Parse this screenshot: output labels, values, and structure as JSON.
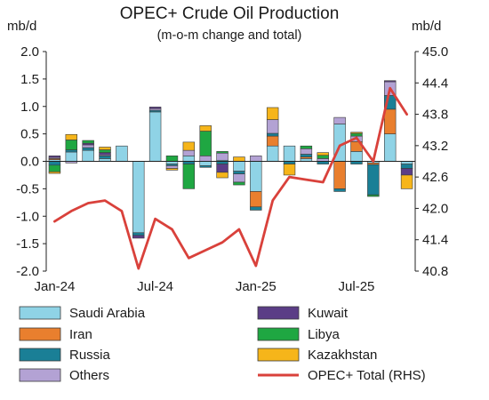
{
  "chart_data": {
    "type": "bar",
    "subtype": "stacked-bar with line on secondary axis",
    "title": "OPEC+ Crude Oil Production",
    "subtitle": "(m-o-m change and total)",
    "left_unit": "mb/d",
    "right_unit": "mb/d",
    "ylim": [
      -2.0,
      2.0
    ],
    "y2lim": [
      40.8,
      45.0
    ],
    "yticks": [
      "2.0",
      "1.5",
      "1.0",
      "0.5",
      "0.0",
      "-0.5",
      "-1.0",
      "-1.5",
      "-2.0"
    ],
    "y2ticks": [
      "45.0",
      "44.4",
      "43.8",
      "43.2",
      "42.6",
      "42.0",
      "41.4",
      "40.8"
    ],
    "x_tick_labels": [
      "Jan-24",
      "Jul-24",
      "Jan-25",
      "Jul-25"
    ],
    "x_tick_indices": [
      0,
      6,
      12,
      18
    ],
    "categories": [
      "Jan-24",
      "Feb-24",
      "Mar-24",
      "Apr-24",
      "May-24",
      "Jun-24",
      "Jul-24",
      "Aug-24",
      "Sep-24",
      "Oct-24",
      "Nov-24",
      "Dec-24",
      "Jan-25",
      "Feb-25",
      "Mar-25",
      "Apr-25",
      "May-25",
      "Jun-25",
      "Jul-25",
      "Aug-25",
      "Sep-25",
      "Oct-25"
    ],
    "series": [
      {
        "name": "Saudi Arabia",
        "color": "#8fd3e6",
        "values": [
          0.03,
          0.17,
          0.2,
          0.05,
          0.28,
          -1.3,
          0.9,
          -0.05,
          0.1,
          -0.08,
          0.02,
          -0.18,
          -0.55,
          0.28,
          0.28,
          0.05,
          0.0,
          0.68,
          0.18,
          -0.03,
          0.5,
          -0.05
        ]
      },
      {
        "name": "Iran",
        "color": "#e97f2e",
        "values": [
          0.02,
          0.0,
          0.0,
          0.0,
          0.0,
          0.0,
          0.0,
          0.0,
          0.0,
          0.0,
          0.0,
          0.0,
          -0.28,
          0.18,
          0.0,
          0.03,
          0.0,
          -0.5,
          0.18,
          -0.03,
          0.45,
          0.0
        ]
      },
      {
        "name": "Russia",
        "color": "#1a7f96",
        "values": [
          -0.07,
          0.04,
          0.05,
          0.05,
          0.0,
          -0.05,
          0.03,
          -0.03,
          -0.05,
          -0.03,
          -0.05,
          -0.05,
          -0.06,
          0.05,
          -0.05,
          0.05,
          -0.05,
          -0.05,
          -0.05,
          -0.55,
          0.25,
          -0.08
        ]
      },
      {
        "name": "Others",
        "color": "#b3a2d4",
        "values": [
          0.02,
          -0.03,
          0.05,
          0.02,
          0.0,
          0.0,
          0.03,
          -0.05,
          0.1,
          0.1,
          0.13,
          -0.15,
          0.1,
          0.25,
          0.0,
          0.1,
          0.05,
          0.12,
          0.1,
          0.0,
          0.25,
          0.0
        ]
      },
      {
        "name": "Kuwait",
        "color": "#5b3d86",
        "values": [
          0.03,
          0.0,
          0.03,
          0.04,
          0.0,
          -0.05,
          0.03,
          0.0,
          0.0,
          0.0,
          -0.15,
          0.0,
          0.0,
          0.0,
          0.0,
          0.0,
          0.0,
          0.0,
          0.0,
          0.0,
          0.02,
          -0.12
        ]
      },
      {
        "name": "Libya",
        "color": "#1fa742",
        "values": [
          -0.12,
          0.18,
          0.05,
          0.05,
          0.0,
          0.0,
          0.0,
          0.1,
          -0.45,
          0.45,
          0.03,
          -0.05,
          0.0,
          0.0,
          0.0,
          0.05,
          0.06,
          0.0,
          0.05,
          -0.03,
          0.0,
          0.0
        ]
      },
      {
        "name": "Kazakhstan",
        "color": "#f6b51a",
        "values": [
          -0.03,
          0.1,
          0.0,
          0.05,
          0.0,
          0.0,
          0.0,
          -0.03,
          0.15,
          0.1,
          -0.1,
          0.08,
          0.0,
          0.22,
          -0.2,
          0.0,
          0.05,
          0.0,
          0.02,
          0.0,
          0.0,
          -0.25
        ]
      },
      {
        "name": "OPEC+ Total (RHS)",
        "color": "#d9413b",
        "axis": "right",
        "values": [
          41.75,
          41.95,
          42.1,
          42.15,
          41.95,
          40.85,
          41.8,
          41.6,
          41.05,
          41.2,
          41.35,
          41.6,
          40.9,
          42.15,
          42.6,
          42.55,
          42.5,
          43.2,
          43.35,
          42.9,
          44.3,
          43.8
        ]
      }
    ],
    "legend": {
      "placement": "bottom",
      "entries": [
        {
          "label": "Saudi Arabia",
          "color": "#8fd3e6",
          "kind": "box"
        },
        {
          "label": "Kuwait",
          "color": "#5b3d86",
          "kind": "box"
        },
        {
          "label": "Iran",
          "color": "#e97f2e",
          "kind": "box"
        },
        {
          "label": "Libya",
          "color": "#1fa742",
          "kind": "box"
        },
        {
          "label": "Russia",
          "color": "#1a7f96",
          "kind": "box"
        },
        {
          "label": "Kazakhstan",
          "color": "#f6b51a",
          "kind": "box"
        },
        {
          "label": "Others",
          "color": "#b3a2d4",
          "kind": "box"
        },
        {
          "label": "OPEC+ Total (RHS)",
          "color": "#d9413b",
          "kind": "line"
        }
      ]
    },
    "grid": false
  }
}
